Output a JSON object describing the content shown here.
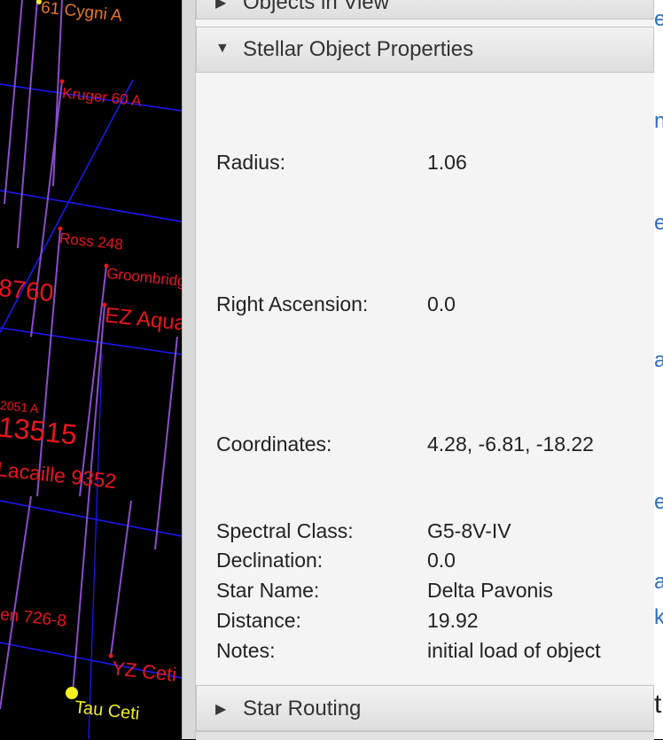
{
  "starmap": {
    "stars": [
      {
        "name": "61 Cygni A"
      },
      {
        "name": "Kruger 60 A"
      },
      {
        "name": "Ross 248"
      },
      {
        "name": "Groombridge"
      },
      {
        "name": "8760"
      },
      {
        "name": "EZ Aquarii"
      },
      {
        "name": "2051 A"
      },
      {
        "name": "13515"
      },
      {
        "name": "Lacaille 9352"
      },
      {
        "name": "en 726-8"
      },
      {
        "name": "YZ Ceti"
      },
      {
        "name": "Tau Ceti"
      }
    ],
    "colors": {
      "label": "#e8151c",
      "grid": "#1a1aff",
      "stem": "#8a4dcc",
      "dot": "#f3ef1f"
    }
  },
  "panel": {
    "sections": {
      "objects_in_view": "Objects in View",
      "stellar_properties": "Stellar Object Properties",
      "star_routing": "Star Routing"
    },
    "properties": [
      {
        "label": "Radius:",
        "value": "1.06"
      },
      {
        "label": "Right Ascension:",
        "value": "0.0"
      },
      {
        "label": "Coordinates:",
        "value": "4.28, -6.81, -18.22"
      },
      {
        "label": "Spectral Class:",
        "value": "G5-8V-IV"
      },
      {
        "label": "Declination:",
        "value": "0.0"
      },
      {
        "label": "Star Name:",
        "value": "Delta Pavonis"
      },
      {
        "label": "Distance:",
        "value": "19.92"
      },
      {
        "label": "Notes:",
        "value": "initial load of object"
      }
    ]
  },
  "right_edge": {
    "glyphs": [
      "e",
      "n",
      "e",
      "a",
      "e",
      "a",
      "k",
      "t"
    ]
  }
}
